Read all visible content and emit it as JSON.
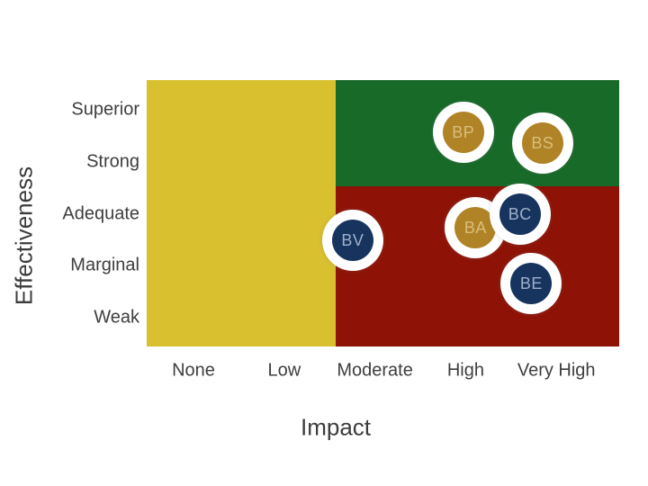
{
  "page": {
    "background_color": "#ffffff"
  },
  "chart_data": {
    "type": "scatter",
    "variant": "quadrant-bubble-matrix",
    "title": "",
    "xlabel": "Impact",
    "ylabel": "Effectiveness",
    "x_tick_labels": [
      "None",
      "Low",
      "Moderate",
      "High",
      "Very High"
    ],
    "y_tick_labels": [
      "Superior",
      "Strong",
      "Adequate",
      "Marginal",
      "Weak"
    ],
    "axis_note": "categorical scales mapped to 1-5; x: None=1..Very High=5; y: Weak=1..Superior=5",
    "xlim": [
      0.5,
      5.5
    ],
    "ylim": [
      0.5,
      5.5
    ],
    "grid": false,
    "legend": false,
    "regions": [
      {
        "name": "low-impact-zone",
        "color": "#D9C02E",
        "x_min": 0.5,
        "x_max": 2.5,
        "y_min": 0.5,
        "y_max": 5.5
      },
      {
        "name": "high-impact-high-effectiveness-zone",
        "color": "#176A28",
        "x_min": 2.5,
        "x_max": 5.5,
        "y_min": 3.5,
        "y_max": 5.5
      },
      {
        "name": "high-impact-low-effectiveness-zone",
        "color": "#8E1206",
        "x_min": 2.5,
        "x_max": 5.5,
        "y_min": 0.5,
        "y_max": 3.5
      }
    ],
    "points": [
      {
        "label": "BP",
        "impact": 3.85,
        "effectiveness": 4.52,
        "color_key": "gold"
      },
      {
        "label": "BS",
        "impact": 4.69,
        "effectiveness": 4.32,
        "color_key": "gold"
      },
      {
        "label": "BV",
        "impact": 2.68,
        "effectiveness": 2.49,
        "color_key": "navy"
      },
      {
        "label": "BA",
        "impact": 3.98,
        "effectiveness": 2.73,
        "color_key": "gold"
      },
      {
        "label": "BC",
        "impact": 4.45,
        "effectiveness": 2.98,
        "color_key": "navy"
      },
      {
        "label": "BE",
        "impact": 4.57,
        "effectiveness": 1.68,
        "color_key": "navy"
      }
    ],
    "colors": {
      "gold": "#B08326",
      "navy": "#17345E",
      "bubble_ring": "#FFFFFF",
      "gold_label_text": "#D8BE7C",
      "navy_label_text": "#9FAFC9",
      "axis_text": "#3E3E3E"
    }
  }
}
